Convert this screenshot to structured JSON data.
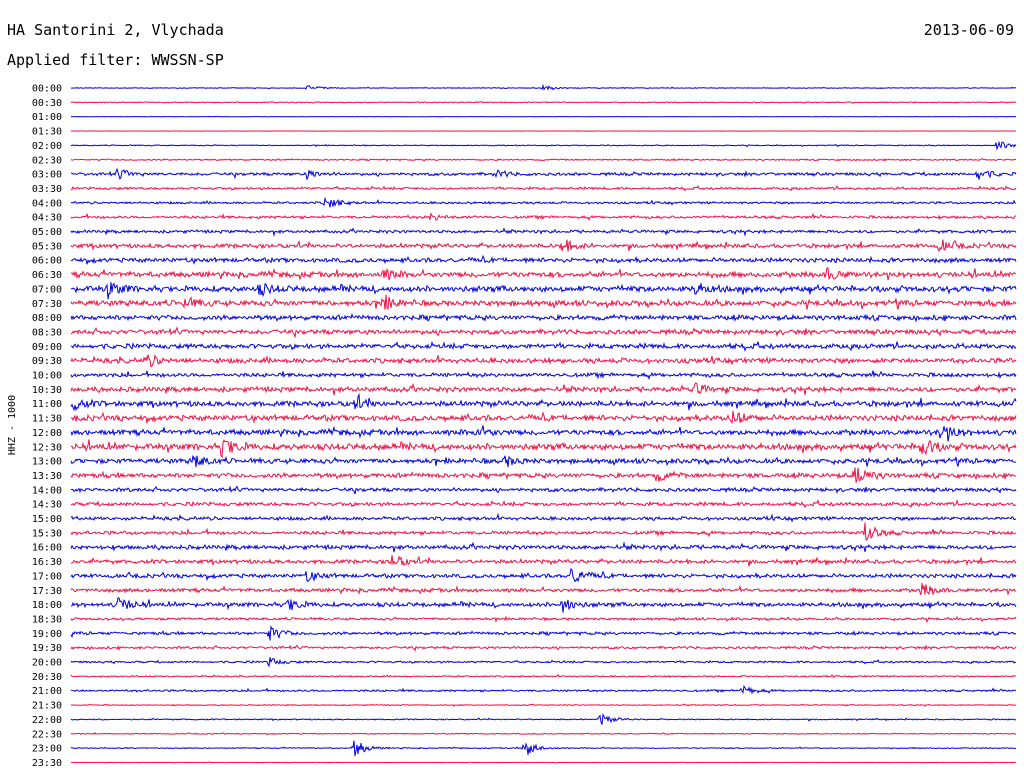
{
  "header": {
    "station": "HA Santorini 2, Vlychada",
    "filter": "Applied filter: WWSSN-SP",
    "date": "2013-06-09"
  },
  "chart_data": {
    "type": "line",
    "chart_kind": "helicorder",
    "ylabel": "HHZ - 1000",
    "row_labels": [
      "00:00",
      "00:30",
      "01:00",
      "01:30",
      "02:00",
      "02:30",
      "03:00",
      "03:30",
      "04:00",
      "04:30",
      "05:00",
      "05:30",
      "06:00",
      "06:30",
      "07:00",
      "07:30",
      "08:00",
      "08:30",
      "09:00",
      "09:30",
      "10:00",
      "10:30",
      "11:00",
      "11:30",
      "12:00",
      "12:30",
      "13:00",
      "13:30",
      "14:00",
      "14:30",
      "15:00",
      "15:30",
      "16:00",
      "16:30",
      "17:00",
      "17:30",
      "18:00",
      "18:30",
      "19:00",
      "19:30",
      "20:00",
      "20:30",
      "21:00",
      "21:30",
      "22:00",
      "22:30",
      "23:00",
      "23:30"
    ],
    "trace_colors": [
      "#0000dd",
      "#ee1144"
    ],
    "noise_level": [
      0.3,
      0.4,
      0.1,
      0.1,
      0.4,
      0.6,
      1.2,
      1.0,
      0.9,
      1.1,
      1.2,
      1.7,
      1.8,
      2.2,
      2.4,
      2.3,
      2.0,
      1.9,
      2.0,
      2.0,
      1.6,
      2.0,
      2.2,
      2.3,
      2.2,
      2.6,
      2.0,
      1.9,
      1.5,
      1.5,
      1.4,
      1.4,
      1.7,
      1.6,
      1.6,
      1.5,
      1.7,
      1.0,
      1.2,
      1.0,
      0.8,
      0.6,
      0.8,
      0.4,
      0.5,
      0.4,
      0.4,
      0.2
    ],
    "events": [
      {
        "row": 0,
        "t": 0.25,
        "amp": 2.5
      },
      {
        "row": 0,
        "t": 0.5,
        "amp": 3
      },
      {
        "row": 4,
        "t": 0.98,
        "amp": 5
      },
      {
        "row": 6,
        "t": 0.05,
        "amp": 5
      },
      {
        "row": 6,
        "t": 0.25,
        "amp": 4
      },
      {
        "row": 6,
        "t": 0.45,
        "amp": 4
      },
      {
        "row": 6,
        "t": 0.96,
        "amp": 6
      },
      {
        "row": 8,
        "t": 0.27,
        "amp": 7
      },
      {
        "row": 9,
        "t": 0.38,
        "amp": 4
      },
      {
        "row": 11,
        "t": 0.52,
        "amp": 7
      },
      {
        "row": 11,
        "t": 0.92,
        "amp": 6
      },
      {
        "row": 13,
        "t": 0.33,
        "amp": 5
      },
      {
        "row": 13,
        "t": 0.8,
        "amp": 6
      },
      {
        "row": 14,
        "t": 0.04,
        "amp": 7
      },
      {
        "row": 14,
        "t": 0.2,
        "amp": 5
      },
      {
        "row": 14,
        "t": 0.66,
        "amp": 6
      },
      {
        "row": 15,
        "t": 0.33,
        "amp": 7
      },
      {
        "row": 15,
        "t": 0.12,
        "amp": 5
      },
      {
        "row": 19,
        "t": 0.08,
        "amp": 6
      },
      {
        "row": 21,
        "t": 0.66,
        "amp": 5
      },
      {
        "row": 22,
        "t": 0.0,
        "amp": 6
      },
      {
        "row": 22,
        "t": 0.3,
        "amp": 6
      },
      {
        "row": 23,
        "t": 0.7,
        "amp": 7
      },
      {
        "row": 24,
        "t": 0.92,
        "amp": 10
      },
      {
        "row": 24,
        "t": 0.43,
        "amp": 5
      },
      {
        "row": 25,
        "t": 0.16,
        "amp": 10
      },
      {
        "row": 25,
        "t": 0.9,
        "amp": 9
      },
      {
        "row": 26,
        "t": 0.13,
        "amp": 7
      },
      {
        "row": 26,
        "t": 0.46,
        "amp": 5
      },
      {
        "row": 27,
        "t": 0.62,
        "amp": 5
      },
      {
        "row": 27,
        "t": 0.83,
        "amp": 11
      },
      {
        "row": 31,
        "t": 0.84,
        "amp": 10
      },
      {
        "row": 33,
        "t": 0.34,
        "amp": 8
      },
      {
        "row": 34,
        "t": 0.53,
        "amp": 9
      },
      {
        "row": 34,
        "t": 0.25,
        "amp": 5
      },
      {
        "row": 35,
        "t": 0.9,
        "amp": 7
      },
      {
        "row": 36,
        "t": 0.05,
        "amp": 8
      },
      {
        "row": 36,
        "t": 0.23,
        "amp": 6
      },
      {
        "row": 36,
        "t": 0.52,
        "amp": 7
      },
      {
        "row": 38,
        "t": 0.21,
        "amp": 7
      },
      {
        "row": 40,
        "t": 0.21,
        "amp": 4
      },
      {
        "row": 42,
        "t": 0.71,
        "amp": 5
      },
      {
        "row": 44,
        "t": 0.56,
        "amp": 6
      },
      {
        "row": 46,
        "t": 0.3,
        "amp": 9
      },
      {
        "row": 46,
        "t": 0.48,
        "amp": 9
      }
    ]
  }
}
